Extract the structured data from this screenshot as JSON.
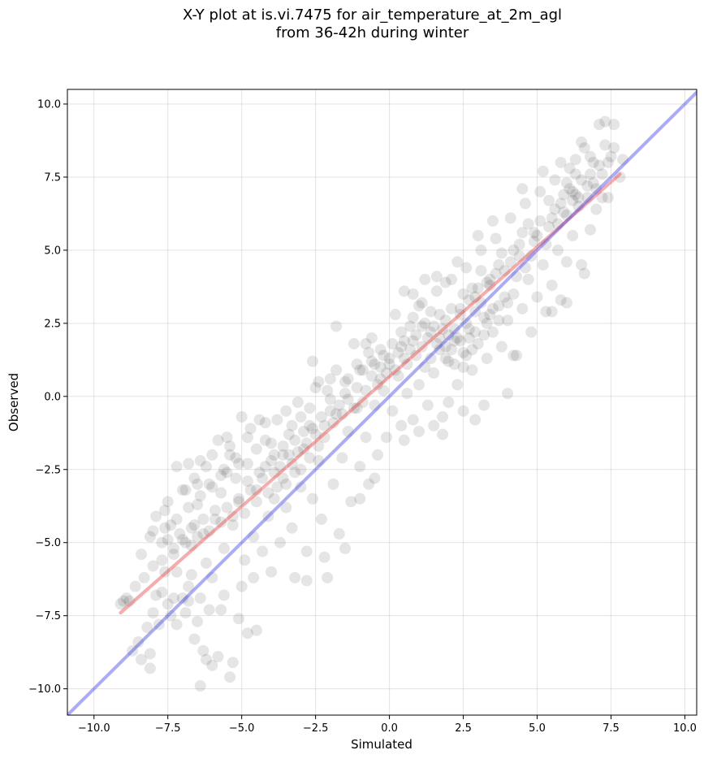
{
  "chart_data": {
    "type": "scatter",
    "title_line1": "X-Y plot at is.vi.7475 for air_temperature_at_2m_agl",
    "title_line2": "from 36-42h during winter",
    "xlabel": "Simulated",
    "ylabel": "Observed",
    "xlim": [
      -10.9,
      10.4
    ],
    "ylim": [
      -10.9,
      10.5
    ],
    "x_ticks": [
      -10.0,
      -7.5,
      -5.0,
      -2.5,
      0.0,
      2.5,
      5.0,
      7.5,
      10.0
    ],
    "y_ticks": [
      -10.0,
      -7.5,
      -5.0,
      -2.5,
      0.0,
      2.5,
      5.0,
      7.5,
      10.0
    ],
    "x_tick_labels": [
      "−10.0",
      "−7.5",
      "−5.0",
      "−2.5",
      "0.0",
      "2.5",
      "5.0",
      "7.5",
      "10.0"
    ],
    "y_tick_labels": [
      "−10.0",
      "−7.5",
      "−5.0",
      "−2.5",
      "0.0",
      "2.5",
      "5.0",
      "7.5",
      "10.0"
    ],
    "grid": true,
    "point_color": "#000000",
    "point_alpha": 0.1,
    "fit_line": {
      "color": "#ee4444",
      "x": [
        -9.1,
        7.8
      ],
      "y": [
        -7.4,
        7.6
      ]
    },
    "identity_line": {
      "color": "#4444ee",
      "x": [
        -10.9,
        10.4
      ],
      "y": [
        -10.9,
        10.4
      ]
    },
    "points": [
      [
        -9.0,
        -7.0
      ],
      [
        -8.8,
        -7.0
      ],
      [
        -8.7,
        -8.7
      ],
      [
        -8.5,
        -8.4
      ],
      [
        -8.4,
        -9.0
      ],
      [
        -8.2,
        -7.9
      ],
      [
        -8.1,
        -9.3
      ],
      [
        -8.1,
        -8.8
      ],
      [
        -8.0,
        -7.4
      ],
      [
        -7.9,
        -6.8
      ],
      [
        -7.8,
        -7.8
      ],
      [
        -7.7,
        -6.7
      ],
      [
        -7.6,
        -6.0
      ],
      [
        -7.5,
        -7.1
      ],
      [
        -7.4,
        -7.5
      ],
      [
        -7.3,
        -6.9
      ],
      [
        -7.2,
        -7.8
      ],
      [
        -7.0,
        -6.9
      ],
      [
        -6.9,
        -7.4
      ],
      [
        -6.8,
        -6.5
      ],
      [
        -6.7,
        -6.1
      ],
      [
        -6.6,
        -8.3
      ],
      [
        -6.5,
        -7.7
      ],
      [
        -6.3,
        -8.7
      ],
      [
        -6.2,
        -9.0
      ],
      [
        -6.1,
        -7.3
      ],
      [
        -6.0,
        -9.2
      ],
      [
        -5.8,
        -8.9
      ],
      [
        -5.7,
        -7.3
      ],
      [
        -5.4,
        -9.6
      ],
      [
        -5.3,
        -9.1
      ],
      [
        -5.1,
        -7.6
      ],
      [
        -4.8,
        -8.1
      ],
      [
        -4.5,
        -8.0
      ],
      [
        -6.4,
        -9.9
      ],
      [
        -8.4,
        -5.4
      ],
      [
        -8.0,
        -4.6
      ],
      [
        -7.9,
        -4.1
      ],
      [
        -7.7,
        -5.0
      ],
      [
        -7.6,
        -3.9
      ],
      [
        -7.5,
        -3.6
      ],
      [
        -7.4,
        -4.4
      ],
      [
        -7.3,
        -5.4
      ],
      [
        -7.2,
        -2.4
      ],
      [
        -7.0,
        -4.9
      ],
      [
        -6.9,
        -3.2
      ],
      [
        -6.8,
        -2.3
      ],
      [
        -6.7,
        -5.1
      ],
      [
        -6.6,
        -4.4
      ],
      [
        -6.5,
        -3.7
      ],
      [
        -6.4,
        -2.2
      ],
      [
        -6.3,
        -4.7
      ],
      [
        -6.2,
        -5.7
      ],
      [
        -6.1,
        -3.0
      ],
      [
        -6.0,
        -2.0
      ],
      [
        -5.9,
        -4.2
      ],
      [
        -5.8,
        -1.5
      ],
      [
        -5.7,
        -3.3
      ],
      [
        -5.6,
        -5.2
      ],
      [
        -5.5,
        -2.6
      ],
      [
        -5.4,
        -1.7
      ],
      [
        -5.3,
        -4.4
      ],
      [
        -5.2,
        -2.1
      ],
      [
        -5.1,
        -3.6
      ],
      [
        -5.0,
        -0.7
      ],
      [
        -4.9,
        -5.6
      ],
      [
        -4.8,
        -2.9
      ],
      [
        -4.7,
        -1.1
      ],
      [
        -4.6,
        -4.8
      ],
      [
        -4.5,
        -3.2
      ],
      [
        -4.4,
        -0.8
      ],
      [
        -4.3,
        -5.3
      ],
      [
        -4.2,
        -2.4
      ],
      [
        -4.1,
        -4.1
      ],
      [
        -4.0,
        -1.6
      ],
      [
        -3.9,
        -3.5
      ],
      [
        -3.8,
        -0.8
      ],
      [
        -3.7,
        -5.0
      ],
      [
        -3.6,
        -2.0
      ],
      [
        -3.5,
        -3.8
      ],
      [
        -3.4,
        -1.3
      ],
      [
        -3.3,
        -4.5
      ],
      [
        -3.2,
        -2.6
      ],
      [
        -3.1,
        -0.2
      ],
      [
        -3.0,
        -3.1
      ],
      [
        -2.9,
        -1.8
      ],
      [
        -2.8,
        -5.3
      ],
      [
        -2.7,
        -1.0
      ],
      [
        -2.6,
        -3.5
      ],
      [
        -2.5,
        0.3
      ],
      [
        -2.4,
        -2.2
      ],
      [
        -2.3,
        -4.2
      ],
      [
        -2.2,
        -1.4
      ],
      [
        -2.1,
        -6.2
      ],
      [
        -2.0,
        0.6
      ],
      [
        -1.9,
        -3.0
      ],
      [
        -1.8,
        -0.6
      ],
      [
        -1.7,
        -4.7
      ],
      [
        -1.6,
        -2.1
      ],
      [
        -1.5,
        0.5
      ],
      [
        -1.4,
        -1.2
      ],
      [
        -1.3,
        -3.6
      ],
      [
        -1.2,
        1.8
      ],
      [
        -1.1,
        -0.4
      ],
      [
        -1.0,
        -2.4
      ],
      [
        -0.9,
        0.9
      ],
      [
        -0.8,
        -1.4
      ],
      [
        -0.7,
        -3.0
      ],
      [
        -0.6,
        1.2
      ],
      [
        -0.5,
        -0.3
      ],
      [
        -0.4,
        -2.0
      ],
      [
        -0.3,
        1.6
      ],
      [
        -0.2,
        0.2
      ],
      [
        -0.1,
        -1.4
      ],
      [
        0.0,
        1.1
      ],
      [
        0.1,
        -0.5
      ],
      [
        0.2,
        2.8
      ],
      [
        0.3,
        0.7
      ],
      [
        0.4,
        -1.0
      ],
      [
        0.5,
        1.9
      ],
      [
        0.6,
        0.1
      ],
      [
        0.7,
        2.4
      ],
      [
        0.8,
        -0.8
      ],
      [
        0.9,
        1.4
      ],
      [
        1.0,
        0.4
      ],
      [
        1.1,
        3.2
      ],
      [
        1.2,
        1.0
      ],
      [
        1.3,
        -0.3
      ],
      [
        1.4,
        2.2
      ],
      [
        1.5,
        0.8
      ],
      [
        1.6,
        3.6
      ],
      [
        1.7,
        1.6
      ],
      [
        1.8,
        -0.7
      ],
      [
        1.9,
        2.6
      ],
      [
        2.0,
        1.2
      ],
      [
        2.1,
        4.0
      ],
      [
        2.2,
        1.9
      ],
      [
        2.3,
        0.4
      ],
      [
        2.4,
        3.0
      ],
      [
        2.5,
        1.5
      ],
      [
        2.6,
        4.4
      ],
      [
        2.7,
        2.3
      ],
      [
        2.8,
        0.9
      ],
      [
        2.9,
        3.4
      ],
      [
        3.0,
        1.8
      ],
      [
        3.1,
        5.0
      ],
      [
        3.2,
        2.7
      ],
      [
        3.3,
        1.3
      ],
      [
        3.4,
        3.8
      ],
      [
        3.5,
        2.2
      ],
      [
        3.6,
        5.4
      ],
      [
        3.7,
        3.1
      ],
      [
        3.8,
        1.7
      ],
      [
        3.9,
        4.3
      ],
      [
        4.0,
        2.6
      ],
      [
        4.1,
        6.1
      ],
      [
        4.2,
        3.5
      ],
      [
        4.3,
        1.4
      ],
      [
        4.4,
        4.8
      ],
      [
        4.5,
        3.0
      ],
      [
        4.6,
        6.6
      ],
      [
        4.7,
        4.0
      ],
      [
        4.8,
        2.2
      ],
      [
        4.9,
        5.3
      ],
      [
        5.0,
        3.4
      ],
      [
        5.1,
        7.0
      ],
      [
        5.2,
        4.5
      ],
      [
        5.3,
        2.9
      ],
      [
        5.4,
        5.8
      ],
      [
        5.5,
        3.8
      ],
      [
        5.6,
        7.4
      ],
      [
        5.7,
        5.0
      ],
      [
        5.8,
        3.3
      ],
      [
        5.9,
        6.3
      ],
      [
        6.0,
        4.6
      ],
      [
        6.1,
        7.8
      ],
      [
        6.2,
        5.5
      ],
      [
        6.3,
        8.1
      ],
      [
        6.4,
        6.8
      ],
      [
        6.5,
        4.5
      ],
      [
        6.6,
        8.5
      ],
      [
        6.7,
        7.2
      ],
      [
        6.8,
        5.7
      ],
      [
        6.9,
        8.0
      ],
      [
        7.0,
        6.4
      ],
      [
        7.1,
        9.3
      ],
      [
        7.2,
        7.6
      ],
      [
        7.3,
        9.4
      ],
      [
        7.4,
        6.8
      ],
      [
        7.5,
        8.2
      ],
      [
        7.6,
        9.3
      ],
      [
        7.8,
        7.5
      ],
      [
        7.9,
        8.1
      ],
      [
        6.6,
        4.2
      ],
      [
        6.0,
        3.2
      ],
      [
        5.5,
        2.9
      ],
      [
        4.2,
        1.4
      ],
      [
        4.0,
        0.1
      ],
      [
        3.2,
        -0.3
      ],
      [
        2.0,
        -0.2
      ],
      [
        2.5,
        -0.5
      ],
      [
        1.8,
        -1.3
      ],
      [
        1.5,
        -1.0
      ],
      [
        2.9,
        -0.8
      ],
      [
        1.0,
        -1.2
      ],
      [
        0.5,
        -1.5
      ],
      [
        -0.5,
        -2.8
      ],
      [
        -1.0,
        -3.5
      ],
      [
        -1.5,
        -5.2
      ],
      [
        -2.2,
        -5.5
      ],
      [
        -2.8,
        -6.3
      ],
      [
        -3.2,
        -6.2
      ],
      [
        -4.0,
        -6.0
      ],
      [
        -4.6,
        -6.2
      ],
      [
        -5.0,
        -6.5
      ],
      [
        -5.6,
        -6.8
      ],
      [
        -6.0,
        -6.2
      ],
      [
        -6.4,
        -6.9
      ],
      [
        -6.8,
        -7.0
      ],
      [
        -7.2,
        -6.0
      ],
      [
        0.8,
        3.5
      ],
      [
        0.4,
        2.2
      ],
      [
        -0.6,
        2.0
      ],
      [
        -1.8,
        2.4
      ],
      [
        -2.6,
        1.2
      ],
      [
        -3.5,
        -0.5
      ],
      [
        -4.2,
        -0.9
      ],
      [
        -5.5,
        -1.4
      ],
      [
        -6.5,
        -3.0
      ],
      [
        -7.0,
        -3.2
      ],
      [
        3.5,
        6.0
      ],
      [
        4.5,
        7.1
      ],
      [
        5.2,
        7.7
      ],
      [
        3.0,
        5.5
      ],
      [
        2.3,
        4.6
      ],
      [
        1.6,
        4.1
      ],
      [
        1.0,
        3.1
      ],
      [
        5.8,
        8.0
      ],
      [
        6.1,
        7.1
      ],
      [
        6.9,
        7.3
      ],
      [
        7.2,
        6.8
      ],
      [
        7.3,
        8.6
      ],
      [
        6.8,
        8.2
      ],
      [
        6.5,
        8.7
      ],
      [
        6.3,
        7.6
      ],
      [
        6.2,
        6.7
      ],
      [
        6.0,
        7.3
      ],
      [
        5.9,
        6.9
      ],
      [
        5.6,
        6.4
      ],
      [
        5.4,
        6.7
      ],
      [
        5.1,
        6.0
      ],
      [
        4.9,
        5.6
      ],
      [
        4.7,
        5.9
      ],
      [
        4.4,
        5.2
      ],
      [
        4.1,
        4.6
      ],
      [
        3.8,
        4.9
      ],
      [
        3.6,
        4.2
      ],
      [
        3.3,
        3.9
      ],
      [
        3.1,
        3.2
      ],
      [
        2.9,
        2.9
      ],
      [
        2.7,
        2.0
      ],
      [
        2.6,
        2.5
      ],
      [
        2.4,
        1.9
      ],
      [
        2.2,
        2.3
      ],
      [
        2.1,
        1.6
      ],
      [
        2.0,
        2.1
      ],
      [
        1.9,
        1.7
      ],
      [
        1.8,
        2.3
      ],
      [
        1.7,
        2.0
      ],
      [
        1.5,
        2.4
      ],
      [
        1.3,
        2.0
      ],
      [
        1.2,
        2.5
      ],
      [
        1.1,
        1.7
      ],
      [
        0.9,
        2.1
      ],
      [
        0.7,
        1.6
      ],
      [
        0.6,
        1.1
      ],
      [
        0.3,
        1.5
      ],
      [
        0.1,
        1.8
      ],
      [
        -0.1,
        0.8
      ],
      [
        -0.3,
        1.0
      ],
      [
        -0.4,
        0.4
      ],
      [
        -0.6,
        0.7
      ],
      [
        -0.8,
        0.2
      ],
      [
        -0.9,
        -0.2
      ],
      [
        -1.1,
        0.3
      ],
      [
        -1.2,
        -0.4
      ],
      [
        -1.4,
        -0.1
      ],
      [
        -1.6,
        -0.6
      ],
      [
        -1.7,
        -0.3
      ],
      [
        -1.9,
        -0.9
      ],
      [
        -2.0,
        -0.5
      ],
      [
        -2.2,
        -1.0
      ],
      [
        -2.3,
        -0.7
      ],
      [
        -2.5,
        -1.3
      ],
      [
        -2.6,
        -1.1
      ],
      [
        -2.8,
        -1.6
      ],
      [
        -2.9,
        -1.2
      ],
      [
        -3.1,
        -1.9
      ],
      [
        -3.2,
        -1.5
      ],
      [
        -3.3,
        -2.3
      ],
      [
        -3.4,
        -2.0
      ],
      [
        -3.6,
        -2.8
      ],
      [
        -3.7,
        -2.4
      ],
      [
        -3.8,
        -3.1
      ],
      [
        -3.9,
        -2.6
      ],
      [
        -4.1,
        -3.3
      ],
      [
        -4.3,
        -2.8
      ],
      [
        -4.5,
        -3.6
      ],
      [
        -4.7,
        -3.2
      ],
      [
        -4.9,
        -4.0
      ],
      [
        -5.1,
        -3.5
      ],
      [
        -5.3,
        -4.1
      ],
      [
        -5.5,
        -3.8
      ],
      [
        -5.7,
        -4.3
      ],
      [
        -5.9,
        -3.9
      ],
      [
        -6.1,
        -4.6
      ],
      [
        -6.3,
        -4.2
      ],
      [
        -6.5,
        -4.8
      ],
      [
        -6.7,
        -4.5
      ],
      [
        -6.9,
        -5.0
      ],
      [
        -7.1,
        -4.7
      ],
      [
        -7.3,
        -5.2
      ],
      [
        -7.5,
        -4.9
      ],
      [
        -7.7,
        -5.6
      ],
      [
        -8.0,
        -5.8
      ],
      [
        -8.3,
        -6.2
      ],
      [
        -8.6,
        -6.5
      ],
      [
        -8.9,
        -6.9
      ],
      [
        -9.1,
        -7.1
      ],
      [
        2.4,
        2.8
      ],
      [
        2.7,
        3.3
      ],
      [
        3.0,
        3.7
      ],
      [
        2.2,
        1.1
      ],
      [
        2.5,
        1.0
      ],
      [
        2.8,
        1.6
      ],
      [
        3.3,
        2.5
      ],
      [
        3.5,
        3.0
      ],
      [
        3.9,
        3.4
      ],
      [
        4.3,
        4.1
      ],
      [
        4.6,
        4.4
      ],
      [
        4.8,
        4.8
      ],
      [
        5.3,
        5.2
      ],
      [
        5.7,
        5.9
      ],
      [
        6.0,
        6.2
      ],
      [
        6.4,
        6.5
      ],
      [
        6.7,
        6.8
      ],
      [
        7.0,
        7.1
      ],
      [
        1.4,
        1.3
      ],
      [
        1.6,
        1.8
      ],
      [
        1.9,
        1.3
      ],
      [
        2.3,
        2.0
      ],
      [
        2.6,
        1.4
      ],
      [
        2.9,
        2.2
      ],
      [
        3.2,
        2.1
      ],
      [
        3.4,
        2.8
      ],
      [
        3.7,
        2.6
      ],
      [
        4.0,
        3.2
      ],
      [
        0.2,
        0.9
      ],
      [
        0.5,
        1.3
      ],
      [
        0.8,
        1.9
      ],
      [
        -0.2,
        1.4
      ],
      [
        -0.5,
        1.1
      ],
      [
        -1.0,
        0.9
      ],
      [
        -1.5,
        0.1
      ],
      [
        -2.0,
        -0.1
      ],
      [
        -2.4,
        -1.7
      ],
      [
        -2.7,
        -2.1
      ],
      [
        -3.0,
        -2.5
      ],
      [
        -3.5,
        -3.0
      ],
      [
        -4.0,
        -2.2
      ],
      [
        -4.4,
        -2.6
      ],
      [
        -4.8,
        -2.3
      ],
      [
        -5.2,
        -2.8
      ],
      [
        -5.6,
        -2.5
      ],
      [
        -6.0,
        -3.1
      ],
      [
        -6.4,
        -3.4
      ],
      [
        -6.8,
        -3.8
      ],
      [
        -7.2,
        -4.2
      ],
      [
        -7.6,
        -4.5
      ],
      [
        -8.1,
        -4.8
      ],
      [
        5.0,
        5.5
      ],
      [
        5.5,
        6.1
      ],
      [
        6.2,
        7.0
      ],
      [
        6.5,
        7.4
      ],
      [
        6.8,
        7.6
      ],
      [
        7.1,
        7.9
      ],
      [
        7.4,
        8.0
      ],
      [
        7.6,
        8.5
      ],
      [
        5.8,
        6.6
      ],
      [
        6.3,
        6.9
      ],
      [
        4.2,
        5.0
      ],
      [
        4.5,
        5.6
      ],
      [
        3.7,
        4.5
      ],
      [
        3.4,
        4.0
      ],
      [
        3.1,
        4.3
      ],
      [
        2.8,
        3.7
      ],
      [
        2.5,
        3.5
      ],
      [
        2.1,
        3.0
      ],
      [
        1.7,
        2.8
      ],
      [
        1.4,
        2.9
      ],
      [
        1.1,
        2.4
      ],
      [
        0.8,
        2.7
      ],
      [
        0.4,
        1.7
      ],
      [
        0.0,
        1.3
      ],
      [
        -0.3,
        0.6
      ],
      [
        -0.7,
        1.5
      ],
      [
        -1.1,
        1.1
      ],
      [
        -1.4,
        0.6
      ],
      [
        -1.8,
        0.9
      ],
      [
        -2.1,
        0.2
      ],
      [
        -2.4,
        0.5
      ],
      [
        -2.7,
        -0.4
      ],
      [
        -3.0,
        -0.7
      ],
      [
        -3.3,
        -1.0
      ],
      [
        -3.6,
        -1.7
      ],
      [
        -3.9,
        -2.0
      ],
      [
        -4.2,
        -1.5
      ],
      [
        -4.5,
        -1.8
      ],
      [
        -4.8,
        -1.4
      ],
      [
        -5.1,
        -2.3
      ],
      [
        -5.4,
        -2.0
      ],
      [
        -5.7,
        -2.7
      ],
      [
        -6.2,
        -2.4
      ],
      [
        -6.6,
        -2.8
      ],
      [
        0.5,
        3.6
      ],
      [
        1.2,
        4.0
      ],
      [
        -0.8,
        1.8
      ],
      [
        1.9,
        3.9
      ]
    ]
  }
}
